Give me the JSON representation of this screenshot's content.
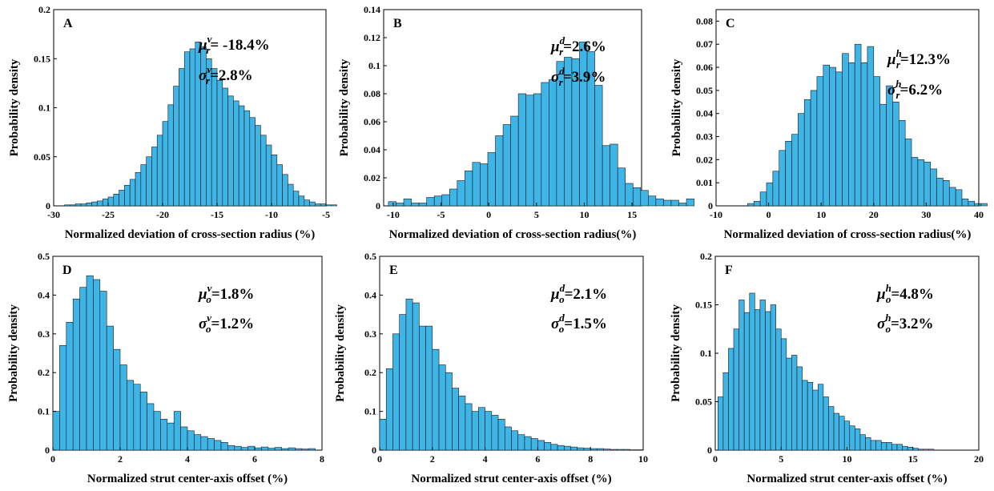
{
  "bar_color": "#3fb4e6",
  "bar_edge": "#1a1a1a",
  "chart_data": [
    {
      "type": "bar",
      "panel": "A",
      "xlabel": "Normalized deviation of cross-section radius (%)",
      "ylabel": "Probability density",
      "xlim": [
        -30,
        -5
      ],
      "ylim": [
        0,
        0.2
      ],
      "xticks": [
        -30,
        -25,
        -20,
        -15,
        -10,
        -5
      ],
      "yticks": [
        0,
        0.05,
        0.1,
        0.15,
        0.2
      ],
      "bin_start": -29,
      "bin_width": 0.5,
      "values": [
        0.001,
        0.001,
        0.002,
        0.002,
        0.003,
        0.004,
        0.005,
        0.007,
        0.009,
        0.012,
        0.016,
        0.021,
        0.027,
        0.034,
        0.042,
        0.05,
        0.06,
        0.072,
        0.086,
        0.103,
        0.122,
        0.14,
        0.157,
        0.16,
        0.167,
        0.162,
        0.15,
        0.14,
        0.128,
        0.12,
        0.112,
        0.107,
        0.102,
        0.097,
        0.09,
        0.082,
        0.072,
        0.062,
        0.052,
        0.042,
        0.032,
        0.022,
        0.015,
        0.01,
        0.006,
        0.004,
        0.002,
        0.002,
        0.001,
        0.001
      ],
      "annotations": [
        {
          "sym": "μ",
          "sub": "r",
          "sup": "v",
          "value": "= -18.4%"
        },
        {
          "sym": "σ",
          "sub": "r",
          "sup": "v",
          "value": "=2.8%"
        }
      ]
    },
    {
      "type": "bar",
      "panel": "B",
      "xlabel": "Normalized deviation of cross-section radius(%)",
      "ylabel": "Probability density",
      "xlim": [
        -11,
        16
      ],
      "ylim": [
        0,
        0.14
      ],
      "xticks": [
        -10,
        -5,
        0,
        5,
        10,
        15
      ],
      "yticks": [
        0,
        0.02,
        0.04,
        0.06,
        0.08,
        0.1,
        0.12,
        0.14
      ],
      "bin_start": -10.5,
      "bin_width": 0.8,
      "values": [
        0.003,
        0.002,
        0.005,
        0.002,
        0.002,
        0.006,
        0.007,
        0.008,
        0.012,
        0.018,
        0.025,
        0.031,
        0.03,
        0.038,
        0.05,
        0.058,
        0.064,
        0.08,
        0.079,
        0.08,
        0.088,
        0.09,
        0.103,
        0.106,
        0.105,
        0.117,
        0.11,
        0.086,
        0.043,
        0.044,
        0.027,
        0.016,
        0.013,
        0.011,
        0.007,
        0.005,
        0.004,
        0.004,
        0.002,
        0.005
      ],
      "annotations": [
        {
          "sym": "μ",
          "sub": "r",
          "sup": "d",
          "value": "=2.6%"
        },
        {
          "sym": "σ",
          "sub": "r",
          "sup": "d",
          "value": "=3.9%"
        }
      ]
    },
    {
      "type": "bar",
      "panel": "C",
      "xlabel": "Normalized deviation of cross-section radius(%)",
      "ylabel": "Probability density",
      "xlim": [
        -10,
        40
      ],
      "ylim": [
        0,
        0.085
      ],
      "xticks": [
        -10,
        0,
        10,
        20,
        30,
        40
      ],
      "yticks": [
        0,
        0.01,
        0.02,
        0.03,
        0.04,
        0.05,
        0.06,
        0.07,
        0.08
      ],
      "bin_start": -4,
      "bin_width": 1.2,
      "values": [
        0.001,
        0.002,
        0.006,
        0.01,
        0.015,
        0.024,
        0.028,
        0.031,
        0.04,
        0.046,
        0.05,
        0.056,
        0.061,
        0.06,
        0.058,
        0.066,
        0.062,
        0.07,
        0.062,
        0.069,
        0.056,
        0.044,
        0.052,
        0.045,
        0.037,
        0.029,
        0.021,
        0.02,
        0.019,
        0.016,
        0.012,
        0.011,
        0.008,
        0.007,
        0.003,
        0.002,
        0.001,
        0.001
      ],
      "annotations": [
        {
          "sym": "μ",
          "sub": "r",
          "sup": "h",
          "value": "=12.3%"
        },
        {
          "sym": "σ",
          "sub": "r",
          "sup": "h",
          "value": "=6.2%"
        }
      ]
    },
    {
      "type": "bar",
      "panel": "D",
      "xlabel": "Normalized strut center-axis offset (%)",
      "ylabel": "Probability density",
      "xlim": [
        0,
        8
      ],
      "ylim": [
        0,
        0.5
      ],
      "xticks": [
        0,
        2,
        4,
        6,
        8
      ],
      "yticks": [
        0,
        0.1,
        0.2,
        0.3,
        0.4,
        0.5
      ],
      "bin_start": 0,
      "bin_width": 0.2,
      "values": [
        0.1,
        0.27,
        0.33,
        0.39,
        0.42,
        0.45,
        0.44,
        0.41,
        0.32,
        0.26,
        0.22,
        0.18,
        0.17,
        0.15,
        0.12,
        0.1,
        0.08,
        0.07,
        0.1,
        0.06,
        0.05,
        0.04,
        0.035,
        0.03,
        0.025,
        0.02,
        0.012,
        0.01,
        0.007,
        0.01,
        0.006,
        0.008,
        0.005,
        0.007,
        0.004,
        0.006,
        0.004,
        0.003,
        0.004
      ],
      "annotations": [
        {
          "sym": "μ",
          "sub": "o",
          "sup": "v",
          "value": "=1.8%"
        },
        {
          "sym": "σ",
          "sub": "o",
          "sup": "v",
          "value": "=1.2%"
        }
      ]
    },
    {
      "type": "bar",
      "panel": "E",
      "xlabel": "Normalized strut center-axis offset (%)",
      "ylabel": "Probability density",
      "xlim": [
        0,
        10
      ],
      "ylim": [
        0,
        0.5
      ],
      "xticks": [
        0,
        2,
        4,
        6,
        8,
        10
      ],
      "yticks": [
        0,
        0.1,
        0.2,
        0.3,
        0.4,
        0.5
      ],
      "bin_start": 0,
      "bin_width": 0.25,
      "values": [
        0.08,
        0.21,
        0.3,
        0.35,
        0.39,
        0.38,
        0.32,
        0.32,
        0.26,
        0.22,
        0.2,
        0.16,
        0.14,
        0.12,
        0.1,
        0.11,
        0.1,
        0.09,
        0.08,
        0.06,
        0.05,
        0.04,
        0.035,
        0.03,
        0.025,
        0.02,
        0.015,
        0.012,
        0.01,
        0.008,
        0.006,
        0.005,
        0.004,
        0.004,
        0.003,
        0.002,
        0.002,
        0.002,
        0.001,
        0.001
      ],
      "annotations": [
        {
          "sym": "μ",
          "sub": "o",
          "sup": "d",
          "value": "=2.1%"
        },
        {
          "sym": "σ",
          "sub": "o",
          "sup": "d",
          "value": "=1.5%"
        }
      ]
    },
    {
      "type": "bar",
      "panel": "F",
      "xlabel": "Normalized strut center-axis offset (%)",
      "ylabel": "Probability density",
      "xlim": [
        0,
        20
      ],
      "ylim": [
        0,
        0.2
      ],
      "xticks": [
        0,
        5,
        10,
        15,
        20
      ],
      "yticks": [
        0,
        0.05,
        0.1,
        0.15,
        0.2
      ],
      "bin_start": 0.2,
      "bin_width": 0.4,
      "values": [
        0.055,
        0.08,
        0.105,
        0.125,
        0.155,
        0.142,
        0.162,
        0.145,
        0.155,
        0.143,
        0.15,
        0.125,
        0.115,
        0.095,
        0.098,
        0.086,
        0.072,
        0.07,
        0.062,
        0.068,
        0.055,
        0.045,
        0.038,
        0.035,
        0.03,
        0.025,
        0.022,
        0.016,
        0.013,
        0.01,
        0.01,
        0.008,
        0.008,
        0.006,
        0.006,
        0.004,
        0.003,
        0.002,
        0.001,
        0.001,
        0.001
      ],
      "annotations": [
        {
          "sym": "μ",
          "sub": "o",
          "sup": "h",
          "value": "=4.8%"
        },
        {
          "sym": "σ",
          "sub": "o",
          "sup": "h",
          "value": "=3.2%"
        }
      ]
    }
  ]
}
